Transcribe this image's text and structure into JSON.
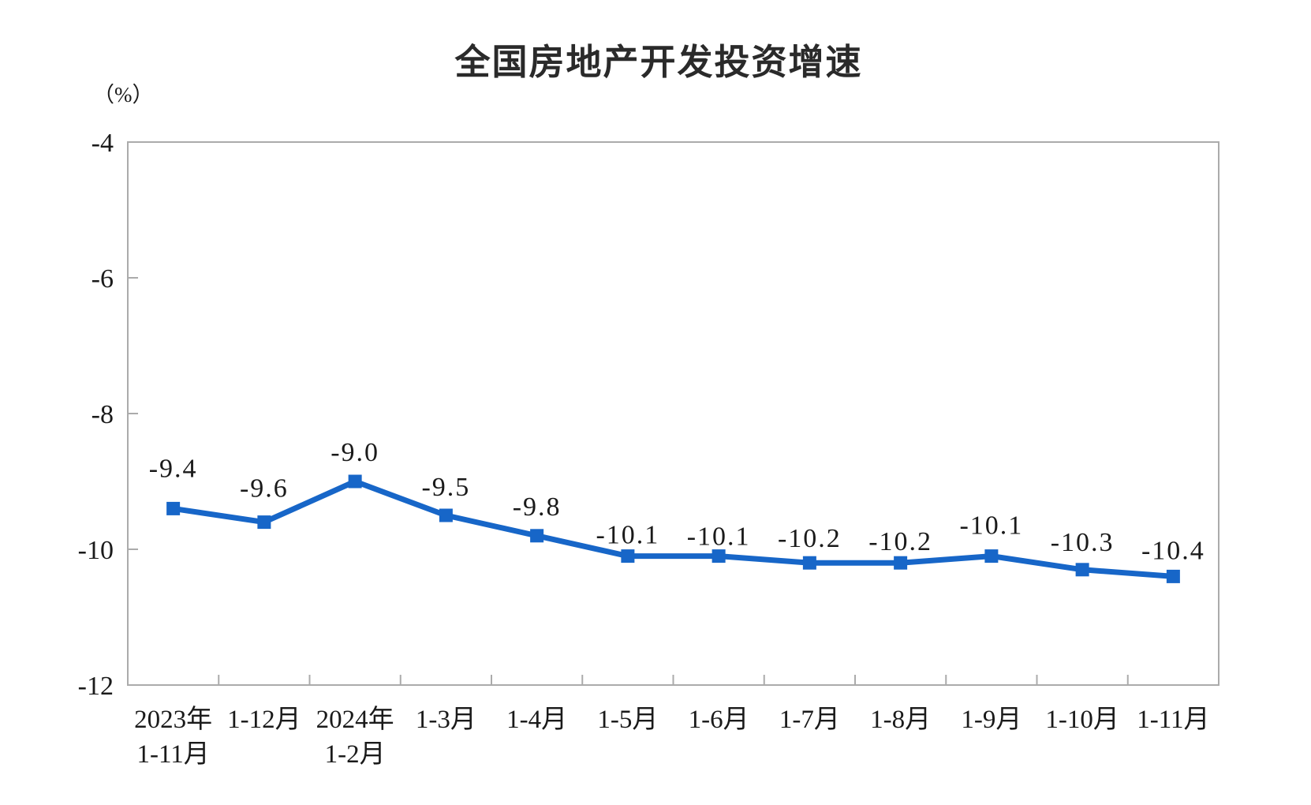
{
  "page": {
    "background_color": "#ffffff"
  },
  "chart_data": {
    "type": "line",
    "title": "全国房地产开发投资增速",
    "unit_label": "（%）",
    "categories": [
      "2023年1-11月",
      "1-12月",
      "2024年1-2月",
      "1-3月",
      "1-4月",
      "1-5月",
      "1-6月",
      "1-7月",
      "1-8月",
      "1-9月",
      "1-10月",
      "1-11月"
    ],
    "category_display_lines": [
      [
        "2023年",
        "1-11月"
      ],
      [
        "1-12月"
      ],
      [
        "2024年",
        "1-2月"
      ],
      [
        "1-3月"
      ],
      [
        "1-4月"
      ],
      [
        "1-5月"
      ],
      [
        "1-6月"
      ],
      [
        "1-7月"
      ],
      [
        "1-8月"
      ],
      [
        "1-9月"
      ],
      [
        "1-10月"
      ],
      [
        "1-11月"
      ]
    ],
    "values": [
      -9.4,
      -9.6,
      -9.0,
      -9.5,
      -9.8,
      -10.1,
      -10.1,
      -10.2,
      -10.2,
      -10.1,
      -10.3,
      -10.4
    ],
    "point_labels": [
      "-9.4",
      "-9.6",
      "-9.0",
      "-9.5",
      "-9.8",
      "-10.1",
      "-10.1",
      "-10.2",
      "-10.2",
      "-10.1",
      "-10.3",
      "-10.4"
    ],
    "yticks": [
      -4,
      -6,
      -8,
      -10,
      -12
    ],
    "ytick_labels": [
      "-4",
      "-6",
      "-8",
      "-10",
      "-12"
    ],
    "ylim": [
      -12,
      -4
    ],
    "grid": false,
    "legend": "none",
    "marker_shape": "square",
    "colors": {
      "line": "#1766c8",
      "marker": "#1766c8",
      "axis": "#ababab",
      "text": "#1a1a1a",
      "title": "#2a2a2a"
    }
  }
}
